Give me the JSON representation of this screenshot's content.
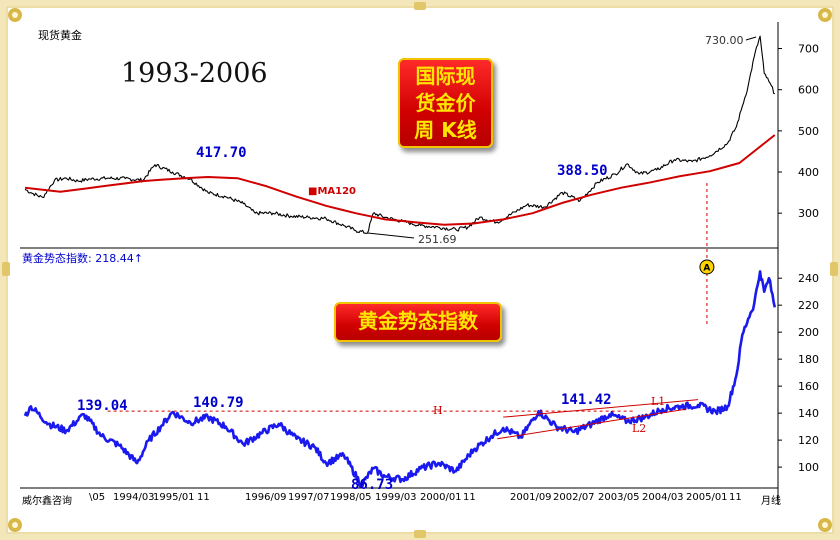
{
  "chart_data": [
    {
      "type": "line",
      "panel_label": "现货黄金",
      "year_range": "1993-2006",
      "box_title": [
        "国际现",
        "货金价",
        "周  K线"
      ],
      "yticks": [
        300,
        400,
        500,
        600,
        700
      ],
      "ylim": [
        230,
        745
      ],
      "series": [
        {
          "name": "现货黄金",
          "color": "#000000",
          "x": [
            1993.9,
            1994.0,
            1994.2,
            1994.4,
            1994.6,
            1994.8,
            1995.0,
            1995.3,
            1995.6,
            1995.9,
            1996.1,
            1996.4,
            1996.7,
            1997.0,
            1997.3,
            1997.6,
            1997.8,
            1998.1,
            1998.4,
            1998.7,
            1999.0,
            1999.3,
            1999.5,
            1999.7,
            1999.8,
            2000.0,
            2000.3,
            2000.6,
            2000.9,
            2001.2,
            2001.4,
            2001.6,
            2001.9,
            2002.2,
            2002.4,
            2002.7,
            2003.0,
            2003.3,
            2003.6,
            2003.9,
            2004.1,
            2004.3,
            2004.6,
            2004.9,
            2005.2,
            2005.5,
            2005.8,
            2005.95,
            2006.05,
            2006.15,
            2006.25,
            2006.35,
            2006.42,
            2006.5,
            2006.6
          ],
          "y": [
            358,
            350,
            338,
            380,
            385,
            378,
            383,
            385,
            384,
            380,
            417.7,
            400,
            383,
            350,
            340,
            323,
            300,
            300,
            293,
            290,
            287,
            270,
            258,
            251.69,
            300,
            290,
            280,
            270,
            266,
            260,
            266,
            290,
            278,
            303,
            320,
            315,
            350,
            330,
            375,
            395,
            420,
            395,
            405,
            430,
            425,
            440,
            470,
            510,
            560,
            610,
            680,
            730,
            640,
            620,
            590
          ]
        },
        {
          "name": "MA120",
          "color": "#d00000",
          "x": [
            1993.9,
            1994.5,
            1995.2,
            1995.9,
            1996.5,
            1997.0,
            1997.5,
            1998.0,
            1998.5,
            1999.0,
            1999.5,
            2000.0,
            2000.5,
            2001.0,
            2001.5,
            2002.0,
            2002.5,
            2003.0,
            2003.5,
            2004.0,
            2004.5,
            2005.0,
            2005.5,
            2006.0,
            2006.6
          ],
          "y": [
            362,
            352,
            365,
            378,
            384,
            388,
            385,
            365,
            340,
            318,
            300,
            285,
            278,
            272,
            275,
            285,
            300,
            325,
            345,
            362,
            375,
            390,
            402,
            422,
            490
          ]
        }
      ],
      "annotations": [
        "417.70",
        "388.50",
        "730.00",
        "251.69",
        "MA120"
      ]
    },
    {
      "type": "line",
      "panel_label": "黄金势态指数: 218.44↑",
      "box_title": "黄金势态指数",
      "yticks": [
        100,
        120,
        140,
        160,
        180,
        200,
        220,
        240
      ],
      "ylim": [
        86,
        252
      ],
      "series": [
        {
          "name": "黄金势态指数",
          "color": "#1a1aee",
          "x": [
            1993.9,
            1994.0,
            1994.3,
            1994.6,
            1994.9,
            1995.2,
            1995.5,
            1995.8,
            1996.0,
            1996.2,
            1996.4,
            1996.7,
            1997.0,
            1997.3,
            1997.6,
            1997.9,
            1998.2,
            1998.5,
            1998.8,
            1999.0,
            1999.3,
            1999.6,
            1999.8,
            2000.0,
            2000.3,
            2000.6,
            2000.9,
            2001.2,
            2001.5,
            2001.8,
            2002.0,
            2002.3,
            2002.6,
            2002.9,
            2003.2,
            2003.5,
            2003.8,
            2004.1,
            2004.4,
            2004.7,
            2005.0,
            2005.3,
            2005.6,
            2005.8,
            2005.95,
            2006.05,
            2006.15,
            2006.25,
            2006.35,
            2006.42,
            2006.5,
            2006.6
          ],
          "y": [
            138,
            145,
            132,
            127,
            139.04,
            123,
            116,
            103,
            120,
            130,
            140.79,
            133,
            137,
            130,
            117,
            125,
            132,
            121,
            115,
            103,
            109,
            86.73,
            99,
            93,
            91,
            99,
            103,
            97,
            113,
            123,
            129,
            122,
            141.42,
            130,
            126,
            132,
            139,
            134,
            137,
            143,
            145,
            146,
            141,
            145,
            168,
            198,
            210,
            221,
            245,
            230,
            240,
            218.44
          ]
        }
      ],
      "annotations": [
        "139.04",
        "140.79",
        "86.73",
        "141.42",
        "H",
        "L1",
        "L2"
      ]
    }
  ],
  "x_axis_labels": [
    "\\05",
    "1994/03",
    "1995/01",
    "11",
    "1996/09",
    "1997/07",
    "1998/05",
    "1999/03",
    "2000/01",
    "11",
    "2001/09",
    "2002/07",
    "2003/05",
    "2004/03",
    "2005/01",
    "11",
    "月线"
  ],
  "footer_brand": "威尔鑫咨询",
  "marker_label": "A"
}
